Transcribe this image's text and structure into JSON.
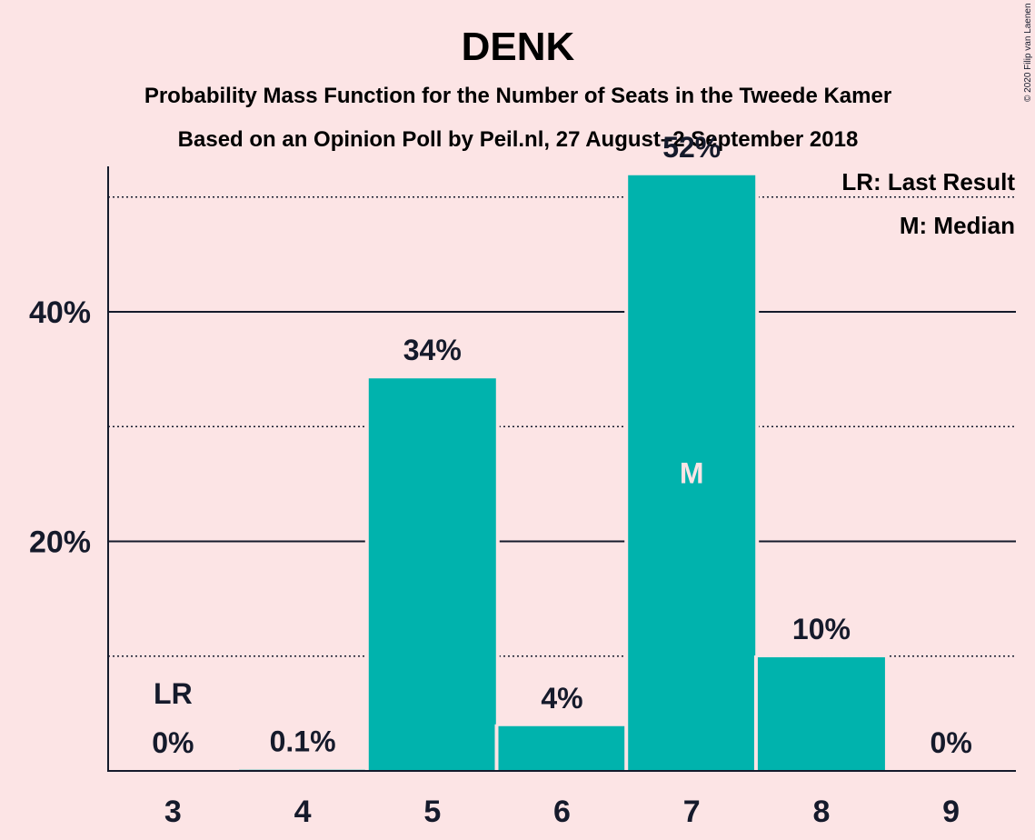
{
  "title": "DENK",
  "subtitle": "Probability Mass Function for the Number of Seats in the Tweede Kamer",
  "subtitle2": "Based on an Opinion Poll by Peil.nl, 27 August–2 September 2018",
  "copyright": "© 2020 Filip van Laenen",
  "legend": {
    "last_result": "LR: Last Result",
    "median": "M: Median"
  },
  "colors": {
    "background": "#fce4e5",
    "bar": "#00b3ad",
    "text": "#151a2b"
  },
  "chart_data": {
    "type": "bar",
    "categories": [
      "3",
      "4",
      "5",
      "6",
      "7",
      "8",
      "9"
    ],
    "values": [
      0,
      0.1,
      34.2,
      3.9,
      51.9,
      9.9,
      0
    ],
    "data_labels": [
      "0%",
      "0.1%",
      "34%",
      "4%",
      "52%",
      "10%",
      "0%"
    ],
    "markers": {
      "3": "LR",
      "7": "M"
    },
    "ylim": [
      0,
      56
    ],
    "yticks": [
      {
        "value": 20,
        "label": "20%"
      },
      {
        "value": 40,
        "label": "40%"
      }
    ],
    "minor_gridlines": [
      10,
      30,
      50
    ],
    "xlabel": "",
    "ylabel": "",
    "legend_position": "top-right"
  }
}
